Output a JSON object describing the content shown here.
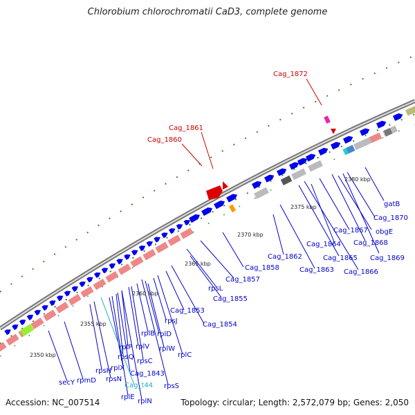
{
  "title": "Chlorobium chlorochromatii CaD3, complete genome",
  "footer": {
    "accession": "Accession: NC_007514",
    "summary": "Topology: circular; Length: 2,572,079 bp; Genes: 2,050"
  },
  "colors": {
    "backbone": "#888888",
    "cds": "#0000ee",
    "rrna_like": "#ee8888",
    "gray_feature": "#bbbbbb",
    "tick_dots": "#228822",
    "highlight_red": "#dd0000",
    "label_blue": "#0000cc",
    "label_cyan": "#22aacc",
    "label_red": "#cc0000"
  },
  "scale_labels": [
    "2350 kbp",
    "2355 kbp",
    "2360 kbp",
    "2365 kbp",
    "2370 kbp",
    "2375 kbp",
    "2380 kbp"
  ],
  "gene_labels": [
    {
      "text": "Cag_1872",
      "color": "red"
    },
    {
      "text": "Cag_1861",
      "color": "red"
    },
    {
      "text": "Cag_1860",
      "color": "red"
    },
    {
      "text": "gatB",
      "color": "blue"
    },
    {
      "text": "Cag_1870",
      "color": "blue"
    },
    {
      "text": "obgE",
      "color": "blue"
    },
    {
      "text": "Cag_1867",
      "color": "blue"
    },
    {
      "text": "Cag_1868",
      "color": "blue"
    },
    {
      "text": "Cag_1864",
      "color": "blue"
    },
    {
      "text": "Cag_1869",
      "color": "blue"
    },
    {
      "text": "Cag_1865",
      "color": "blue"
    },
    {
      "text": "Cag_1862",
      "color": "blue"
    },
    {
      "text": "Cag_1863",
      "color": "blue"
    },
    {
      "text": "Cag_1866",
      "color": "blue"
    },
    {
      "text": "Cag_1858",
      "color": "blue"
    },
    {
      "text": "Cag_1857",
      "color": "blue"
    },
    {
      "text": "rpsL",
      "color": "blue"
    },
    {
      "text": "Cag_1855",
      "color": "blue"
    },
    {
      "text": "Cag_1853",
      "color": "blue"
    },
    {
      "text": "rpsJ",
      "color": "blue"
    },
    {
      "text": "Cag_1854",
      "color": "blue"
    },
    {
      "text": "rplB",
      "color": "blue"
    },
    {
      "text": "rplD",
      "color": "blue"
    },
    {
      "text": "rplP",
      "color": "blue"
    },
    {
      "text": "rplV",
      "color": "blue"
    },
    {
      "text": "rplW",
      "color": "blue"
    },
    {
      "text": "rplC",
      "color": "blue"
    },
    {
      "text": "rpsQ",
      "color": "blue"
    },
    {
      "text": "rpsC",
      "color": "blue"
    },
    {
      "text": "rplX",
      "color": "blue"
    },
    {
      "text": "Cag_1843",
      "color": "blue"
    },
    {
      "text": "rpsH",
      "color": "blue"
    },
    {
      "text": "rpsN",
      "color": "blue"
    },
    {
      "text": "Cag_t44",
      "color": "cyan"
    },
    {
      "text": "rpsS",
      "color": "blue"
    },
    {
      "text": "secY",
      "color": "blue"
    },
    {
      "text": "rpmD",
      "color": "blue"
    },
    {
      "text": "rplE",
      "color": "blue"
    },
    {
      "text": "rplN",
      "color": "blue"
    }
  ]
}
